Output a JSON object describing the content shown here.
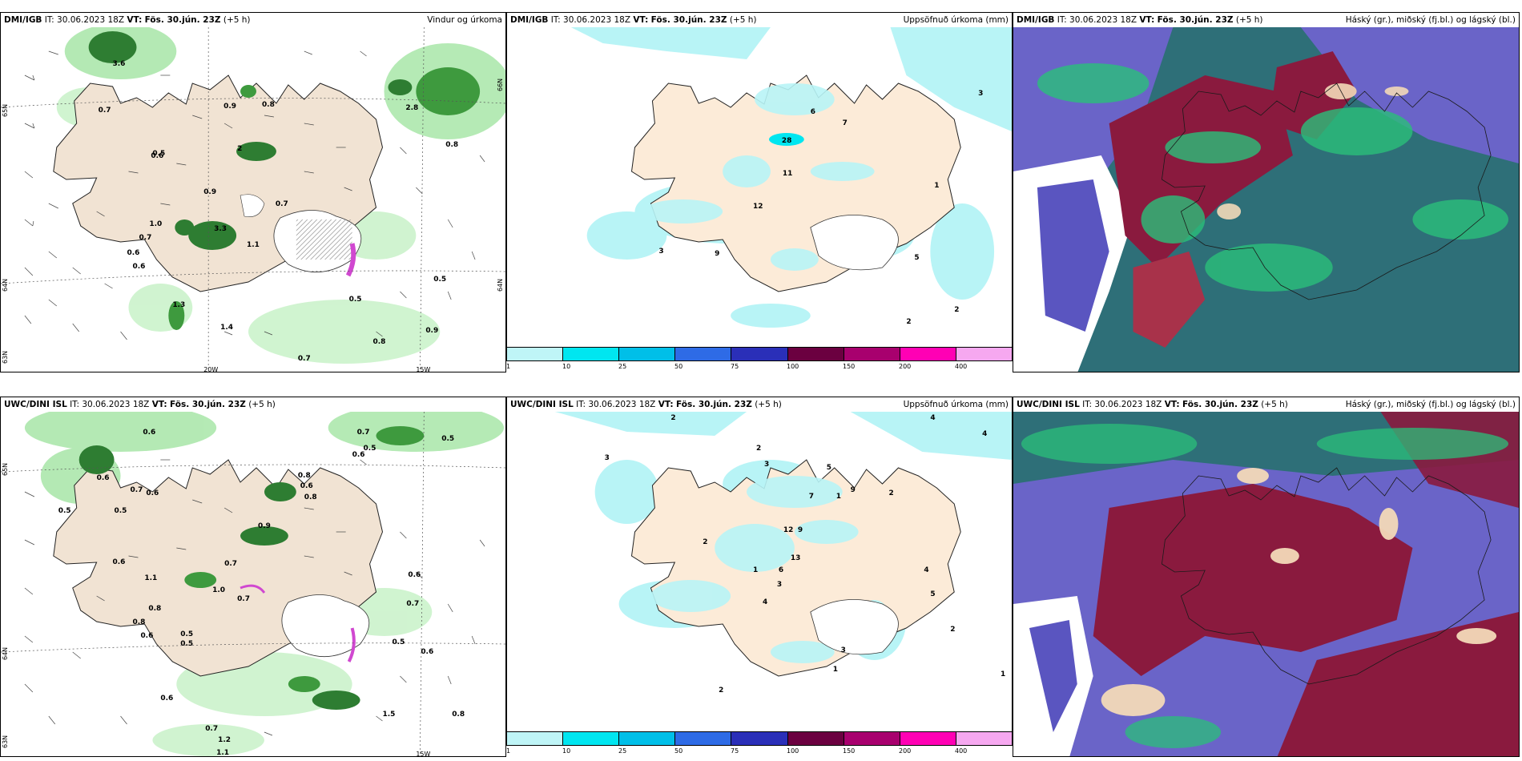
{
  "panels": [
    {
      "model": "DMI/IGB",
      "it": "IT: 30.06.2023 18Z",
      "vt_label": "VT:",
      "vt": "Fös. 30.jún. 23Z",
      "lead": "(+5 h)",
      "right_title": "Vindur og úrkoma",
      "grid_labels": [
        "20W",
        "15W",
        "65N",
        "64N",
        "63N",
        "66N"
      ],
      "precip_labels": [
        "3.6",
        "0.7",
        "0.6",
        "2",
        "0.9",
        "0.8",
        "2.8",
        "0.9",
        "1.0",
        "0.7",
        "0.6",
        "3.3",
        "0.7",
        "0.8",
        "0.5",
        "0.9",
        "1.3",
        "1.4",
        "0.7",
        "0.8",
        "0.6",
        "1.1",
        "0.5",
        "0.5"
      ]
    },
    {
      "model": "DMI/IGB",
      "it": "IT: 30.06.2023 18Z",
      "vt_label": "VT:",
      "vt": "Fös. 30.jún. 23Z",
      "lead": "(+5 h)",
      "right_title": "Uppsöfnuð úrkoma (mm)",
      "precip_labels": [
        "28",
        "6",
        "7",
        "3",
        "11",
        "12",
        "9",
        "3",
        "1",
        "5",
        "2",
        "2"
      ]
    },
    {
      "model": "DMI/IGB",
      "it": "IT: 30.06.2023 18Z",
      "vt_label": "VT:",
      "vt": "Fös. 30.jún. 23Z",
      "lead": "(+5 h)",
      "right_title": "Háský (gr.), miðský (fj.bl.) og lágský (bl.)"
    },
    {
      "model": "UWC/DINI ISL",
      "it": "IT: 30.06.2023 18Z",
      "vt_label": "VT:",
      "vt": "Fös. 30.jún. 23Z",
      "lead": "(+5 h)",
      "right_title": "",
      "grid_labels": [
        "15W",
        "65N",
        "64N",
        "63N"
      ],
      "precip_labels": [
        "0.6",
        "0.7",
        "0.5",
        "0.5",
        "0.6",
        "0.6",
        "0.8",
        "0.7",
        "0.6",
        "0.5",
        "0.5",
        "0.6",
        "0.8",
        "0.9",
        "0.6",
        "0.7",
        "1.1",
        "1.0",
        "0.6",
        "0.8",
        "0.7",
        "0.5",
        "0.8",
        "0.6",
        "0.5",
        "0.7",
        "0.6",
        "0.5",
        "0.8",
        "0.6",
        "1.2",
        "0.7",
        "1.5",
        "1.1"
      ]
    },
    {
      "model": "UWC/DINI ISL",
      "it": "IT: 30.06.2023 18Z",
      "vt_label": "VT:",
      "vt": "Fös. 30.jún. 23Z",
      "lead": "(+5 h)",
      "right_title": "Uppsöfnuð úrkoma (mm)",
      "precip_labels": [
        "2",
        "4",
        "3",
        "4",
        "2",
        "5",
        "3",
        "9",
        "2",
        "1",
        "7",
        "12",
        "9",
        "2",
        "1",
        "13",
        "6",
        "3",
        "4",
        "4",
        "5",
        "3",
        "1",
        "2",
        "2",
        "1"
      ]
    },
    {
      "model": "UWC/DINI ISL",
      "it": "IT: 30.06.2023 18Z",
      "vt_label": "VT:",
      "vt": "Fös. 30.jún. 23Z",
      "lead": "(+5 h)",
      "right_title": "Háský (gr.), miðský (fj.bl.) og lágský (bl.)"
    }
  ],
  "colorbar": {
    "ticks": [
      "1",
      "10",
      "25",
      "50",
      "75",
      "100",
      "150",
      "200",
      "400"
    ],
    "colors": [
      "#bff5f7",
      "#00e6f0",
      "#00bfe8",
      "#2e6be6",
      "#2a2fb8",
      "#6b0040",
      "#a8006e",
      "#ff00b4",
      "#f6a8f0"
    ]
  }
}
